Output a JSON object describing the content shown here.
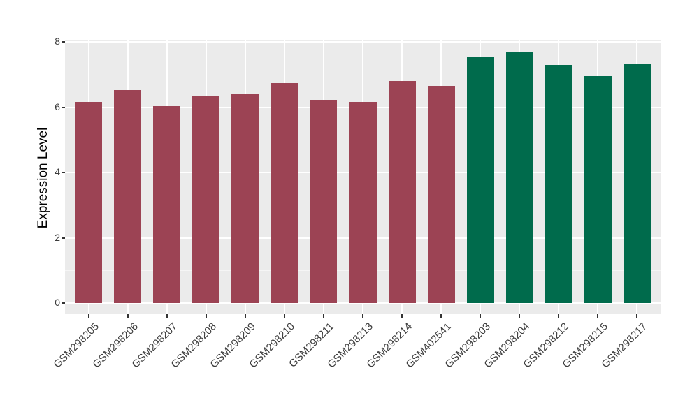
{
  "chart_data": {
    "type": "bar",
    "title": "",
    "xlabel": "",
    "ylabel": "Expression Level",
    "categories": [
      "GSM298205",
      "GSM298206",
      "GSM298207",
      "GSM298208",
      "GSM298209",
      "GSM298210",
      "GSM298211",
      "GSM298213",
      "GSM298214",
      "GSM402541",
      "GSM298203",
      "GSM298204",
      "GSM298212",
      "GSM298215",
      "GSM298217"
    ],
    "values": [
      6.17,
      6.54,
      6.04,
      6.37,
      6.41,
      6.74,
      6.24,
      6.17,
      6.82,
      6.67,
      7.54,
      7.69,
      7.3,
      6.96,
      7.34
    ],
    "bar_colors": [
      "#9C4354",
      "#9C4354",
      "#9C4354",
      "#9C4354",
      "#9C4354",
      "#9C4354",
      "#9C4354",
      "#9C4354",
      "#9C4354",
      "#9C4354",
      "#006B4C",
      "#006B4C",
      "#006B4C",
      "#006B4C",
      "#006B4C"
    ],
    "yticks_major": [
      0,
      2,
      4,
      6,
      8
    ],
    "yticks_minor": [
      1,
      3,
      5,
      7
    ],
    "ylim": [
      0,
      8.07
    ],
    "bar_width_frac": 0.7,
    "grid": "major+minor",
    "legend_position": "none",
    "style": {
      "panel_bg": "#EBEBEB",
      "grid_major": "#FFFFFF",
      "grid_minor": "#F5F5F5",
      "axis_text": "#3C3C3C",
      "axis_title": "#000000",
      "tick_mark": "#333333",
      "group1_color": "#9C4354",
      "group2_color": "#006B4C"
    }
  }
}
